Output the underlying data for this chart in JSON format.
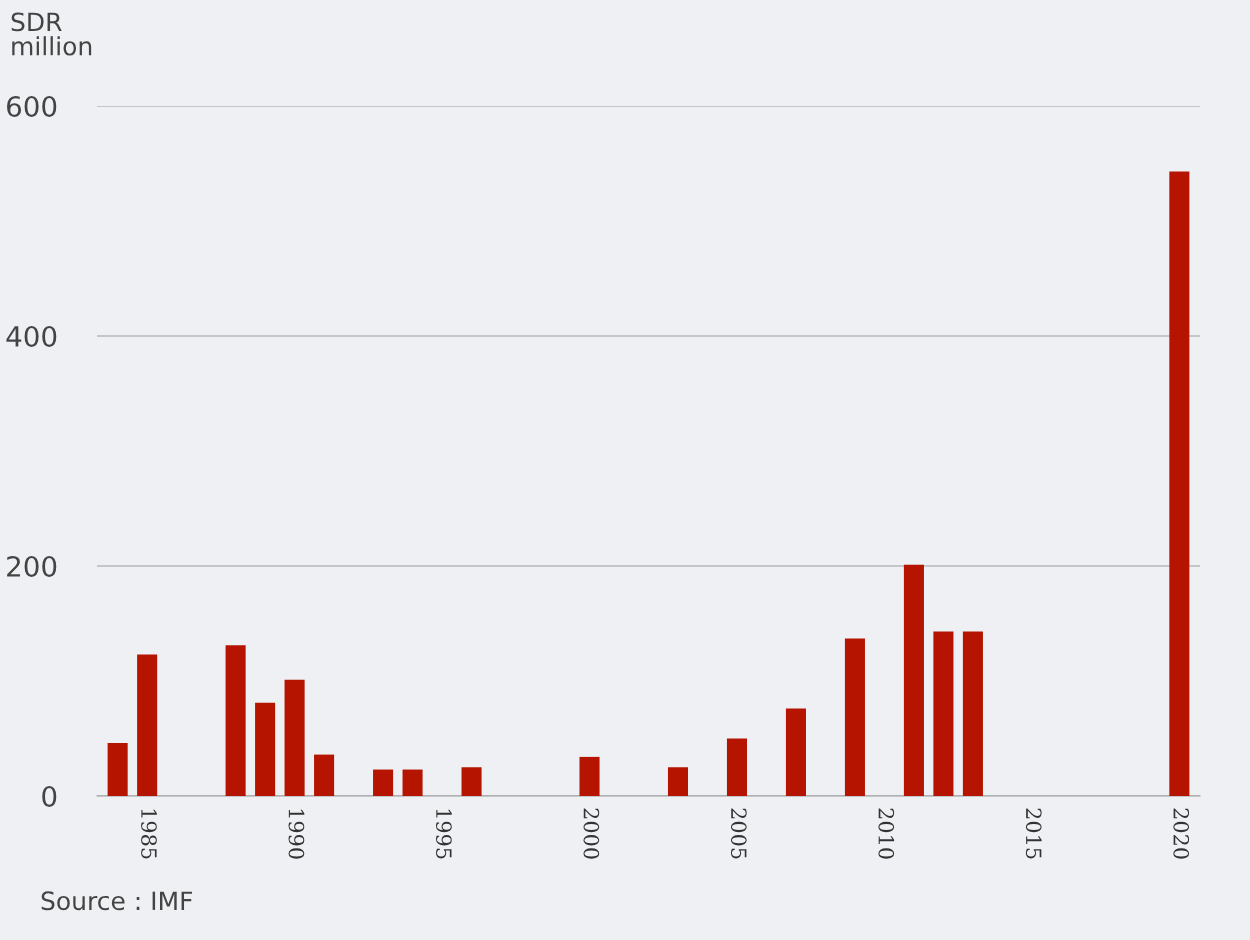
{
  "chart_data": {
    "type": "bar",
    "ylabel": "SDR\nmillion",
    "x": [
      1984,
      1985,
      1988,
      1989,
      1990,
      1991,
      1993,
      1994,
      1996,
      2000,
      2003,
      2005,
      2007,
      2009,
      2011,
      2012,
      2013,
      2020
    ],
    "values": [
      46,
      123,
      131,
      81,
      101,
      36,
      23,
      23,
      25,
      34,
      25,
      50,
      76,
      137,
      201,
      143,
      143,
      543
    ],
    "color": "#b41400",
    "xlim": [
      1983.3,
      2020.7
    ],
    "xticks": [
      1985,
      1990,
      1995,
      2000,
      2005,
      2010,
      2015,
      2020
    ],
    "ylim": [
      0,
      600
    ],
    "yticks": [
      0,
      200,
      400,
      600
    ],
    "grid": "y",
    "legend": false,
    "annotations": [
      "Source : IMF"
    ]
  }
}
